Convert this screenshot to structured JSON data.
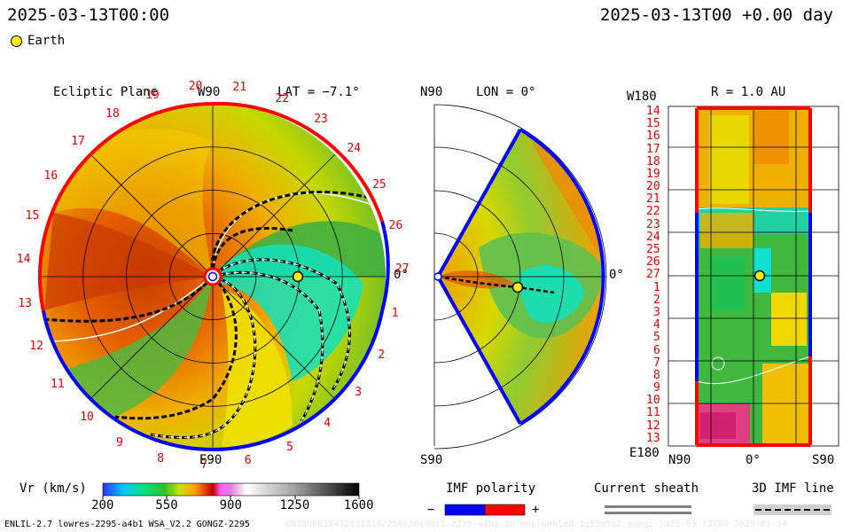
{
  "header": {
    "left_time": "2025-03-13T00:00",
    "right_time": "2025-03-13T00 +0.00 day"
  },
  "legend": {
    "earth_label": "Earth"
  },
  "ecliptic_panel": {
    "title": "Ecliptic Plane",
    "top_label": "W90",
    "bottom_label": "E90",
    "right_label": "0°",
    "lat_label": "LAT = −7.1°",
    "carrington_ticks": [
      "1",
      "2",
      "3",
      "4",
      "5",
      "6",
      "7",
      "8",
      "9",
      "10",
      "11",
      "12",
      "13",
      "14",
      "15",
      "16",
      "17",
      "18",
      "19",
      "20",
      "21",
      "22",
      "23",
      "24",
      "25",
      "26",
      "27"
    ]
  },
  "meridional_panel": {
    "top_label": "N90",
    "bottom_label": "S90",
    "lon_label": "LON = 0°",
    "right_label": "0°"
  },
  "radius_panel": {
    "r_label": "R = 1.0 AU",
    "top_left_label": "W180",
    "bottom_left_label": "E180",
    "x_tick_labels": [
      "N90",
      "0°",
      "S90"
    ],
    "y_tick_labels": [
      "14",
      "15",
      "16",
      "17",
      "18",
      "19",
      "20",
      "21",
      "22",
      "23",
      "24",
      "25",
      "26",
      "27",
      "1",
      "2",
      "3",
      "4",
      "5",
      "6",
      "7",
      "8",
      "9",
      "10",
      "11",
      "12",
      "13"
    ]
  },
  "colorbar": {
    "label": "Vr (km/s)",
    "tick_labels": [
      "200",
      "550",
      "900",
      "1250",
      "1600"
    ],
    "min": 200,
    "max": 1600
  },
  "imf_polarity": {
    "title": "IMF polarity",
    "minus": "−",
    "plus": "+",
    "minus_color": "#0000ff",
    "plus_color": "#ff0000"
  },
  "current_sheath": {
    "title": "Current sheath"
  },
  "imf_line": {
    "title": "3D IMF line"
  },
  "footer": {
    "left": "ENLIL-2.7 lowres-2295-a4b1 WSA_V2.2 GONGZ-2295",
    "right": "UNIQUE031412131314/256x30x90x1.2235-a4b1.16-noplumnled-1g53q5d2.gongz-2025-03-13T00  2025-03-14"
  },
  "chart_data": {
    "type": "heatmap",
    "quantity": "Vr (km/s)",
    "value_range": [
      200,
      1600
    ],
    "colorbar_ticks": [
      200,
      550,
      900,
      1250,
      1600
    ],
    "earth": {
      "radius_au": 1.0,
      "longitude_deg": 0,
      "latitude_deg": -7.1,
      "vr_kms_approx": 450
    },
    "colors": {
      "slow_wind": "#2fb44a",
      "moderate_wind": "#e8e800",
      "fast_wind": "#d83a00",
      "very_slow": "#00e0c0",
      "positive_polarity": "#ff0000",
      "negative_polarity": "#0000ff"
    }
  }
}
